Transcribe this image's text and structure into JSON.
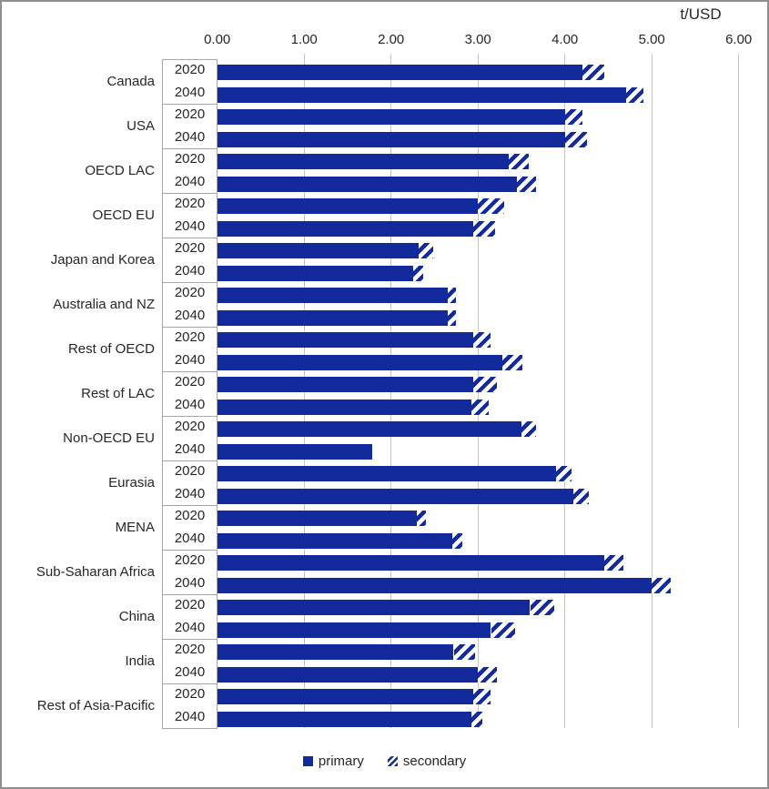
{
  "colors": {
    "bar": "#132a9c",
    "grid": "#c6c6c6",
    "box_border": "#a6a6a6",
    "text": "#262626",
    "outer_border": "#8f8f8f"
  },
  "legend": {
    "items": [
      {
        "label": "primary",
        "style": "solid"
      },
      {
        "label": "secondary",
        "style": "hatched"
      }
    ]
  },
  "chart_data": {
    "type": "bar",
    "orientation": "horizontal",
    "stacked": true,
    "unit_label": "t/USD",
    "x_axis_side": "top",
    "xlim": [
      0,
      6
    ],
    "x_ticks": [
      "0.00",
      "1.00",
      "2.00",
      "3.00",
      "4.00",
      "5.00",
      "6.00"
    ],
    "grid": true,
    "legend_position": "bottom",
    "series_names": [
      "primary",
      "secondary"
    ],
    "groups": [
      {
        "region": "Canada",
        "rows": [
          {
            "year": "2020",
            "primary": 4.2,
            "secondary": 0.25
          },
          {
            "year": "2040",
            "primary": 4.7,
            "secondary": 0.2
          }
        ]
      },
      {
        "region": "USA",
        "rows": [
          {
            "year": "2020",
            "primary": 4.0,
            "secondary": 0.2
          },
          {
            "year": "2040",
            "primary": 4.0,
            "secondary": 0.25
          }
        ]
      },
      {
        "region": "OECD LAC",
        "rows": [
          {
            "year": "2020",
            "primary": 3.35,
            "secondary": 0.23
          },
          {
            "year": "2040",
            "primary": 3.45,
            "secondary": 0.22
          }
        ]
      },
      {
        "region": "OECD EU",
        "rows": [
          {
            "year": "2020",
            "primary": 3.0,
            "secondary": 0.3
          },
          {
            "year": "2040",
            "primary": 2.95,
            "secondary": 0.25
          }
        ]
      },
      {
        "region": "Japan and Korea",
        "rows": [
          {
            "year": "2020",
            "primary": 2.32,
            "secondary": 0.17
          },
          {
            "year": "2040",
            "primary": 2.25,
            "secondary": 0.12
          }
        ]
      },
      {
        "region": "Australia and NZ",
        "rows": [
          {
            "year": "2020",
            "primary": 2.65,
            "secondary": 0.1
          },
          {
            "year": "2040",
            "primary": 2.65,
            "secondary": 0.1
          }
        ]
      },
      {
        "region": "Rest of OECD",
        "rows": [
          {
            "year": "2020",
            "primary": 2.95,
            "secondary": 0.2
          },
          {
            "year": "2040",
            "primary": 3.28,
            "secondary": 0.23
          }
        ]
      },
      {
        "region": "Rest of LAC",
        "rows": [
          {
            "year": "2020",
            "primary": 2.95,
            "secondary": 0.27
          },
          {
            "year": "2040",
            "primary": 2.92,
            "secondary": 0.2
          }
        ]
      },
      {
        "region": "Non-OECD EU",
        "rows": [
          {
            "year": "2020",
            "primary": 3.5,
            "secondary": 0.17
          },
          {
            "year": "2040",
            "primary": 1.78,
            "secondary": 0.0
          }
        ]
      },
      {
        "region": "Eurasia",
        "rows": [
          {
            "year": "2020",
            "primary": 3.9,
            "secondary": 0.18
          },
          {
            "year": "2040",
            "primary": 4.1,
            "secondary": 0.18
          }
        ]
      },
      {
        "region": "MENA",
        "rows": [
          {
            "year": "2020",
            "primary": 2.3,
            "secondary": 0.1
          },
          {
            "year": "2040",
            "primary": 2.7,
            "secondary": 0.12
          }
        ]
      },
      {
        "region": "Sub-Saharan Africa",
        "rows": [
          {
            "year": "2020",
            "primary": 4.45,
            "secondary": 0.22
          },
          {
            "year": "2040",
            "primary": 5.0,
            "secondary": 0.22
          }
        ]
      },
      {
        "region": "China",
        "rows": [
          {
            "year": "2020",
            "primary": 3.6,
            "secondary": 0.28
          },
          {
            "year": "2040",
            "primary": 3.15,
            "secondary": 0.28
          }
        ]
      },
      {
        "region": "India",
        "rows": [
          {
            "year": "2020",
            "primary": 2.72,
            "secondary": 0.25
          },
          {
            "year": "2040",
            "primary": 3.0,
            "secondary": 0.22
          }
        ]
      },
      {
        "region": "Rest of Asia-Pacific",
        "rows": [
          {
            "year": "2020",
            "primary": 2.95,
            "secondary": 0.2
          },
          {
            "year": "2040",
            "primary": 2.92,
            "secondary": 0.13
          }
        ]
      }
    ]
  }
}
